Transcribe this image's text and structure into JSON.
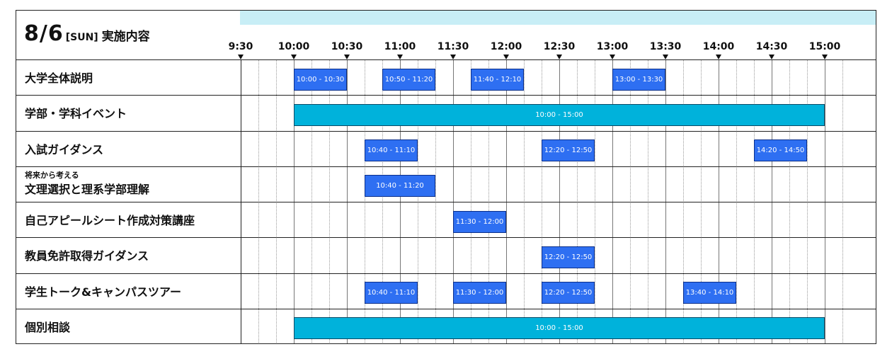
{
  "header": {
    "date": "8/6",
    "weekday": "[SUN]",
    "label": "実施内容"
  },
  "timeline": {
    "ticks": [
      "9:30",
      "10:00",
      "10:30",
      "11:00",
      "11:30",
      "12:00",
      "12:30",
      "13:00",
      "13:30",
      "14:00",
      "14:30",
      "15:00"
    ]
  },
  "colors": {
    "blue": "#2e6ff2",
    "cyan": "#00b2db",
    "band": "#c8eef6"
  },
  "rows": [
    {
      "label": "大学全体説明",
      "sublabel": "",
      "events": [
        {
          "start": "10:00",
          "end": "10:30",
          "text": "10:00 - 10:30",
          "color": "blue"
        },
        {
          "start": "10:50",
          "end": "11:20",
          "text": "10:50 - 11:20",
          "color": "blue"
        },
        {
          "start": "11:40",
          "end": "12:10",
          "text": "11:40 - 12:10",
          "color": "blue"
        },
        {
          "start": "13:00",
          "end": "13:30",
          "text": "13:00 - 13:30",
          "color": "blue"
        }
      ]
    },
    {
      "label": "学部・学科イベント",
      "sublabel": "",
      "events": [
        {
          "start": "10:00",
          "end": "15:00",
          "text": "10:00 - 15:00",
          "color": "cyan"
        }
      ]
    },
    {
      "label": "入試ガイダンス",
      "sublabel": "",
      "events": [
        {
          "start": "10:40",
          "end": "11:10",
          "text": "10:40 - 11:10",
          "color": "blue"
        },
        {
          "start": "12:20",
          "end": "12:50",
          "text": "12:20 - 12:50",
          "color": "blue"
        },
        {
          "start": "14:20",
          "end": "14:50",
          "text": "14:20 - 14:50",
          "color": "blue"
        }
      ]
    },
    {
      "label": "文理選択と理系学部理解",
      "sublabel": "将来から考える",
      "events": [
        {
          "start": "10:40",
          "end": "11:20",
          "text": "10:40 - 11:20",
          "color": "blue"
        }
      ]
    },
    {
      "label": "自己アピールシート作成対策講座",
      "sublabel": "",
      "events": [
        {
          "start": "11:30",
          "end": "12:00",
          "text": "11:30 - 12:00",
          "color": "blue"
        }
      ]
    },
    {
      "label": "教員免許取得ガイダンス",
      "sublabel": "",
      "events": [
        {
          "start": "12:20",
          "end": "12:50",
          "text": "12:20 - 12:50",
          "color": "blue"
        }
      ]
    },
    {
      "label": "学生トーク&キャンパスツアー",
      "sublabel": "",
      "events": [
        {
          "start": "10:40",
          "end": "11:10",
          "text": "10:40 - 11:10",
          "color": "blue"
        },
        {
          "start": "11:30",
          "end": "12:00",
          "text": "11:30 - 12:00",
          "color": "blue"
        },
        {
          "start": "12:20",
          "end": "12:50",
          "text": "12:20 - 12:50",
          "color": "blue"
        },
        {
          "start": "13:40",
          "end": "14:10",
          "text": "13:40 - 14:10",
          "color": "blue"
        }
      ]
    },
    {
      "label": "個別相談",
      "sublabel": "",
      "events": [
        {
          "start": "10:00",
          "end": "15:00",
          "text": "10:00 - 15:00",
          "color": "cyan"
        }
      ]
    }
  ]
}
